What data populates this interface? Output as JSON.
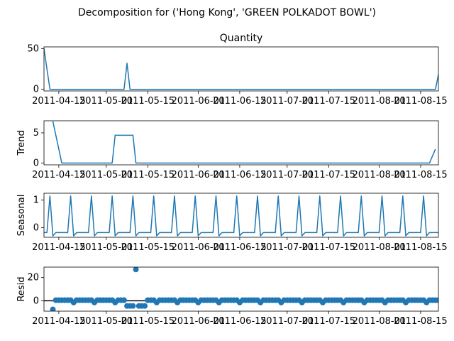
{
  "figure": {
    "title": "Decomposition for ('Hong Kong', 'GREEN POLKADOT BOWL')"
  },
  "colors": {
    "line": "#1f77b4",
    "axis": "#000000",
    "background": "#ffffff"
  },
  "chart_data": [
    {
      "type": "line",
      "title": "Quantity",
      "ylabel": "",
      "xlim": [
        "2011-04-10",
        "2011-08-21"
      ],
      "ylim": [
        -2,
        52
      ],
      "yticks": [
        0,
        50
      ],
      "grid": false,
      "x_ticks": [
        "2011-04-15",
        "2011-05-01",
        "2011-05-15",
        "2011-06-01",
        "2011-06-15",
        "2011-07-01",
        "2011-07-15",
        "2011-08-01",
        "2011-08-15"
      ],
      "series": [
        {
          "points": [
            [
              "2011-04-10",
              50
            ],
            [
              "2011-04-12",
              0
            ],
            [
              "2011-05-06",
              0
            ],
            [
              "2011-05-07",
              0
            ],
            [
              "2011-05-08",
              32
            ],
            [
              "2011-05-09",
              0
            ],
            [
              "2011-08-20",
              0
            ],
            [
              "2011-08-21",
              18
            ]
          ]
        }
      ]
    },
    {
      "type": "line",
      "title": "",
      "ylabel": "Trend",
      "xlim": [
        "2011-04-10",
        "2011-08-21"
      ],
      "ylim": [
        -0.3,
        7.0
      ],
      "yticks": [
        0,
        5
      ],
      "grid": false,
      "x_ticks": [
        "2011-04-15",
        "2011-05-01",
        "2011-05-15",
        "2011-06-01",
        "2011-06-15",
        "2011-07-01",
        "2011-07-15",
        "2011-08-01",
        "2011-08-15"
      ],
      "series": [
        {
          "points": [
            [
              "2011-04-13",
              6.9
            ],
            [
              "2011-04-16",
              0
            ],
            [
              "2011-05-03",
              0
            ],
            [
              "2011-05-04",
              4.6
            ],
            [
              "2011-05-10",
              4.6
            ],
            [
              "2011-05-11",
              0
            ],
            [
              "2011-08-18",
              0
            ],
            [
              "2011-08-20",
              2.3
            ]
          ]
        }
      ]
    },
    {
      "type": "line",
      "title": "",
      "ylabel": "Seasonal",
      "xlim": [
        "2011-04-10",
        "2011-08-21"
      ],
      "ylim": [
        -0.35,
        1.25
      ],
      "yticks": [
        0,
        1
      ],
      "grid": false,
      "x_ticks": [
        "2011-04-15",
        "2011-05-01",
        "2011-05-15",
        "2011-06-01",
        "2011-06-15",
        "2011-07-01",
        "2011-07-15",
        "2011-08-01",
        "2011-08-15"
      ],
      "series": [
        {
          "pattern": [
            -0.18,
            -0.18,
            1.15,
            -0.3,
            -0.18,
            -0.18,
            -0.18
          ],
          "start": "2011-04-10",
          "end": "2011-08-21"
        }
      ]
    },
    {
      "type": "scatter",
      "title": "",
      "ylabel": "Resid",
      "xlim": [
        "2011-04-10",
        "2011-08-21"
      ],
      "ylim": [
        -9,
        29
      ],
      "yticks": [
        0,
        20
      ],
      "grid": false,
      "x_ticks": [
        "2011-04-15",
        "2011-05-01",
        "2011-05-15",
        "2011-06-01",
        "2011-06-15",
        "2011-07-01",
        "2011-07-15",
        "2011-08-01",
        "2011-08-15"
      ],
      "series": [
        {
          "start": "2011-04-13",
          "values": [
            -7.5,
            0.5,
            0.5,
            0.5,
            0.5,
            0.5,
            0.5,
            -1.5,
            0.5,
            0.5,
            0.5,
            0.5,
            0.5,
            0.5,
            -1.5,
            0.5,
            0.5,
            0.5,
            0.5,
            0.5,
            0.5,
            -1.5,
            0.5,
            0.5,
            0.5,
            -4.5,
            -4.5,
            -4.5,
            27,
            -4.5,
            -4.5,
            -4.5,
            0.5,
            0.5,
            0.5,
            -1.5,
            0.5,
            0.5,
            0.5,
            0.5,
            0.5,
            0.5,
            -1.5,
            0.5,
            0.5,
            0.5,
            0.5,
            0.5,
            0.5,
            -1.5,
            0.5,
            0.5,
            0.5,
            0.5,
            0.5,
            0.5,
            -1.5,
            0.5,
            0.5,
            0.5,
            0.5,
            0.5,
            0.5,
            -1.5,
            0.5,
            0.5,
            0.5,
            0.5,
            0.5,
            0.5,
            -1.5,
            0.5,
            0.5,
            0.5,
            0.5,
            0.5,
            0.5,
            -1.5,
            0.5,
            0.5,
            0.5,
            0.5,
            0.5,
            0.5,
            -1.5,
            0.5,
            0.5,
            0.5,
            0.5,
            0.5,
            0.5,
            -1.5,
            0.5,
            0.5,
            0.5,
            0.5,
            0.5,
            0.5,
            -1.5,
            0.5,
            0.5,
            0.5,
            0.5,
            0.5,
            0.5,
            -1.5,
            0.5,
            0.5,
            0.5,
            0.5,
            0.5,
            0.5,
            -1.5,
            0.5,
            0.5,
            0.5,
            0.5,
            0.5,
            0.5,
            -1.5,
            0.5,
            0.5,
            0.5,
            0.5,
            0.5,
            0.5,
            -1.5,
            0.5,
            0.5,
            0.5,
            0.5,
            0.5,
            0.5,
            -1.5,
            0.5,
            0.5,
            -1.5,
            -2.0
          ]
        }
      ],
      "reference_line": 0
    }
  ]
}
